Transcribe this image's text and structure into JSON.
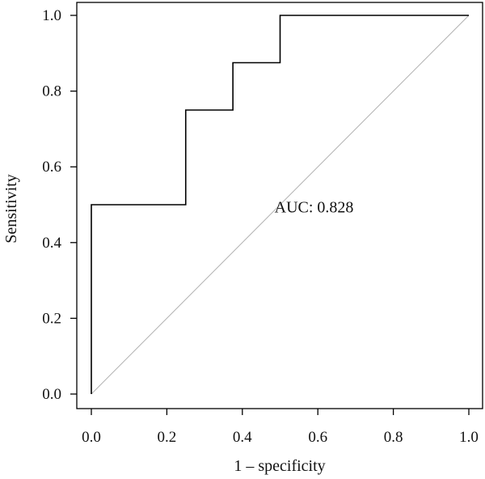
{
  "chart_data": {
    "type": "line",
    "title": "",
    "xlabel": "1 – specificity",
    "ylabel": "Sensitivity",
    "xlim": [
      0.0,
      1.0
    ],
    "ylim": [
      0.0,
      1.0
    ],
    "x_ticks": [
      "0.0",
      "0.2",
      "0.4",
      "0.6",
      "0.8",
      "1.0"
    ],
    "y_ticks": [
      "0.0",
      "0.2",
      "0.4",
      "0.6",
      "0.8",
      "1.0"
    ],
    "grid": false,
    "legend": "none",
    "series": [
      {
        "x": [
          0.0,
          0.0,
          0.25,
          0.25,
          0.375,
          0.375,
          0.5,
          0.5,
          1.0
        ],
        "y": [
          0.0,
          0.5,
          0.5,
          0.75,
          0.75,
          0.875,
          0.875,
          1.0,
          1.0
        ],
        "color": "#000000"
      }
    ],
    "reference_line": {
      "x": [
        0.0,
        1.0
      ],
      "y": [
        0.0,
        1.0
      ],
      "color": "#b0b0b0"
    },
    "annotations": [
      {
        "text": "AUC: 0.828",
        "x": 0.59,
        "y": 0.48
      }
    ]
  }
}
